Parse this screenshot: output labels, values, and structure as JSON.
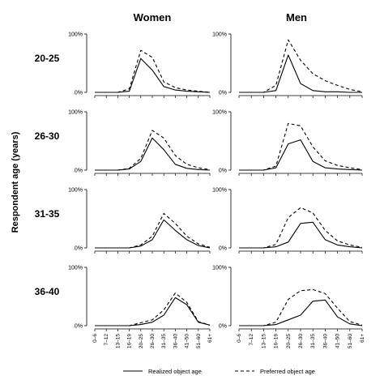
{
  "chart_data": {
    "type": "line",
    "ylabel": "Respondent age (years)",
    "columns": [
      "Women",
      "Men"
    ],
    "rows": [
      "20-25",
      "26-30",
      "31-35",
      "36-40"
    ],
    "x": [
      "0–6",
      "7–12",
      "13–15",
      "16–19",
      "20–25",
      "26–30",
      "31–35",
      "36–40",
      "41–50",
      "51–60",
      "61+"
    ],
    "ytick_labels": [
      "100%",
      "0%"
    ],
    "ylim": [
      0,
      1
    ],
    "legend": {
      "position": "bottom-center",
      "items": [
        "Realized object age",
        "Preferred object age"
      ]
    },
    "series_styles": {
      "Realized object age": "solid",
      "Preferred object age": "dashed"
    },
    "panels": [
      {
        "row": "20-25",
        "column": "Women",
        "series": [
          {
            "name": "Realized object age",
            "values": [
              0,
              0,
              0,
              0.02,
              0.58,
              0.38,
              0.1,
              0.04,
              0.02,
              0.01,
              0
            ]
          },
          {
            "name": "Preferred object age",
            "values": [
              0,
              0,
              0,
              0.06,
              0.72,
              0.6,
              0.18,
              0.08,
              0.04,
              0.02,
              0
            ]
          }
        ]
      },
      {
        "row": "20-25",
        "column": "Men",
        "series": [
          {
            "name": "Realized object age",
            "values": [
              0,
              0,
              0,
              0.03,
              0.64,
              0.15,
              0.03,
              0.01,
              0.01,
              0,
              0
            ]
          },
          {
            "name": "Preferred object age",
            "values": [
              0,
              0,
              0,
              0.12,
              0.9,
              0.55,
              0.32,
              0.2,
              0.12,
              0.05,
              0.01
            ]
          }
        ]
      },
      {
        "row": "26-30",
        "column": "Women",
        "series": [
          {
            "name": "Realized object age",
            "values": [
              0,
              0,
              0,
              0.02,
              0.15,
              0.55,
              0.35,
              0.1,
              0.03,
              0.01,
              0
            ]
          },
          {
            "name": "Preferred object age",
            "values": [
              0,
              0,
              0,
              0.03,
              0.2,
              0.68,
              0.55,
              0.25,
              0.1,
              0.04,
              0.01
            ]
          }
        ]
      },
      {
        "row": "26-30",
        "column": "Men",
        "series": [
          {
            "name": "Realized object age",
            "values": [
              0,
              0,
              0,
              0.04,
              0.45,
              0.52,
              0.15,
              0.04,
              0.02,
              0.01,
              0
            ]
          },
          {
            "name": "Preferred object age",
            "values": [
              0,
              0,
              0,
              0.07,
              0.8,
              0.76,
              0.4,
              0.16,
              0.08,
              0.04,
              0.01
            ]
          }
        ]
      },
      {
        "row": "31-35",
        "column": "Women",
        "series": [
          {
            "name": "Realized object age",
            "values": [
              0,
              0,
              0,
              0,
              0.03,
              0.14,
              0.48,
              0.3,
              0.14,
              0.04,
              0
            ]
          },
          {
            "name": "Preferred object age",
            "values": [
              0,
              0,
              0,
              0,
              0.05,
              0.2,
              0.59,
              0.42,
              0.2,
              0.07,
              0.01
            ]
          }
        ]
      },
      {
        "row": "31-35",
        "column": "Men",
        "series": [
          {
            "name": "Realized object age",
            "values": [
              0,
              0,
              0,
              0.02,
              0.1,
              0.42,
              0.44,
              0.14,
              0.05,
              0.02,
              0
            ]
          },
          {
            "name": "Preferred object age",
            "values": [
              0,
              0,
              0,
              0.06,
              0.52,
              0.69,
              0.6,
              0.3,
              0.12,
              0.05,
              0.01
            ]
          }
        ]
      },
      {
        "row": "36-40",
        "column": "Women",
        "series": [
          {
            "name": "Realized object age",
            "values": [
              0,
              0,
              0,
              0,
              0.02,
              0.06,
              0.18,
              0.48,
              0.36,
              0.06,
              0.01
            ]
          },
          {
            "name": "Preferred object age",
            "values": [
              0,
              0,
              0,
              0,
              0.05,
              0.1,
              0.27,
              0.56,
              0.4,
              0.07,
              0.01
            ]
          }
        ]
      },
      {
        "row": "36-40",
        "column": "Men",
        "series": [
          {
            "name": "Realized object age",
            "values": [
              0,
              0,
              0,
              0.02,
              0.1,
              0.18,
              0.42,
              0.44,
              0.15,
              0.03,
              0
            ]
          },
          {
            "name": "Preferred object age",
            "values": [
              0,
              0,
              0,
              0.06,
              0.45,
              0.6,
              0.62,
              0.55,
              0.3,
              0.07,
              0.01
            ]
          }
        ]
      }
    ]
  }
}
